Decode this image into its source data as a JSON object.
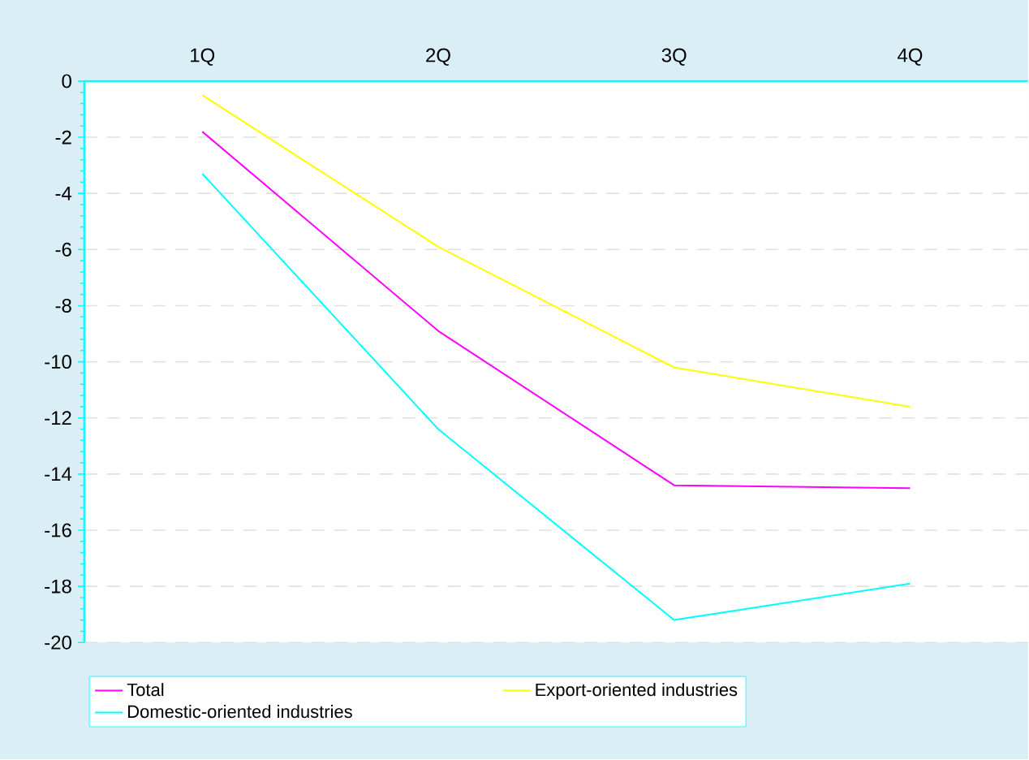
{
  "chart_data": {
    "type": "line",
    "categories": [
      "1Q",
      "2Q",
      "3Q",
      "4Q"
    ],
    "series": [
      {
        "name": "Total",
        "color": "#ff00ff",
        "values": [
          -1.8,
          -8.9,
          -14.4,
          -14.5
        ]
      },
      {
        "name": "Export-oriented industries",
        "color": "#ffff00",
        "values": [
          -0.5,
          -5.9,
          -10.2,
          -11.6
        ]
      },
      {
        "name": "Domestic-oriented industries",
        "color": "#00ffff",
        "values": [
          -3.3,
          -12.4,
          -19.2,
          -17.9
        ]
      }
    ],
    "ylim": [
      -20,
      0
    ],
    "yticks": [
      0,
      -2,
      -4,
      -6,
      -8,
      -10,
      -12,
      -14,
      -16,
      -18,
      -20
    ],
    "grid": "y",
    "legend": "bottom",
    "marker": "none",
    "line_style": "solid"
  }
}
